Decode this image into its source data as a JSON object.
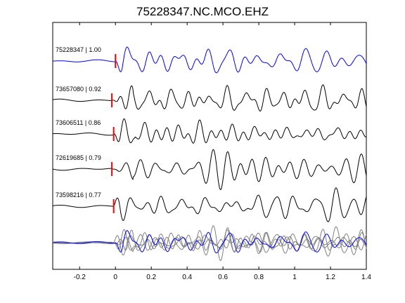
{
  "chart_data": {
    "type": "line",
    "title": "75228347.NC.MCO.EHZ",
    "xlabel": "",
    "ylabel": "",
    "xlim": [
      -0.35,
      1.4
    ],
    "x_ticks": [
      -0.2,
      0,
      0.2,
      0.4,
      0.6,
      0.8,
      1,
      1.2,
      1.4
    ],
    "x_tick_labels": [
      "-0.2",
      "0",
      "0.2",
      "0.4",
      "0.6",
      "0.8",
      "1",
      "1.2",
      "1.4"
    ],
    "grid": false,
    "pick_time": 0,
    "traces": [
      {
        "label": "75228347 | 1.00",
        "event_id": "75228347",
        "correlation": 1.0,
        "color": "#0000ff",
        "pick_offset": 0.0
      },
      {
        "label": "73657080 | 0.92",
        "event_id": "73657080",
        "correlation": 0.92,
        "color": "#000000",
        "pick_offset": -0.02
      },
      {
        "label": "73606511 | 0.86",
        "event_id": "73606511",
        "correlation": 0.86,
        "color": "#000000",
        "pick_offset": -0.01
      },
      {
        "label": "72619685 | 0.79",
        "event_id": "72619685",
        "correlation": 0.79,
        "color": "#000000",
        "pick_offset": -0.02
      },
      {
        "label": "73598216 | 0.77",
        "event_id": "73598216",
        "correlation": 0.77,
        "color": "#000000",
        "pick_offset": -0.01
      }
    ],
    "stack_colors": {
      "reference": "#0000ff",
      "others": "#808080"
    },
    "pick_marker_color": "#ff0000"
  }
}
